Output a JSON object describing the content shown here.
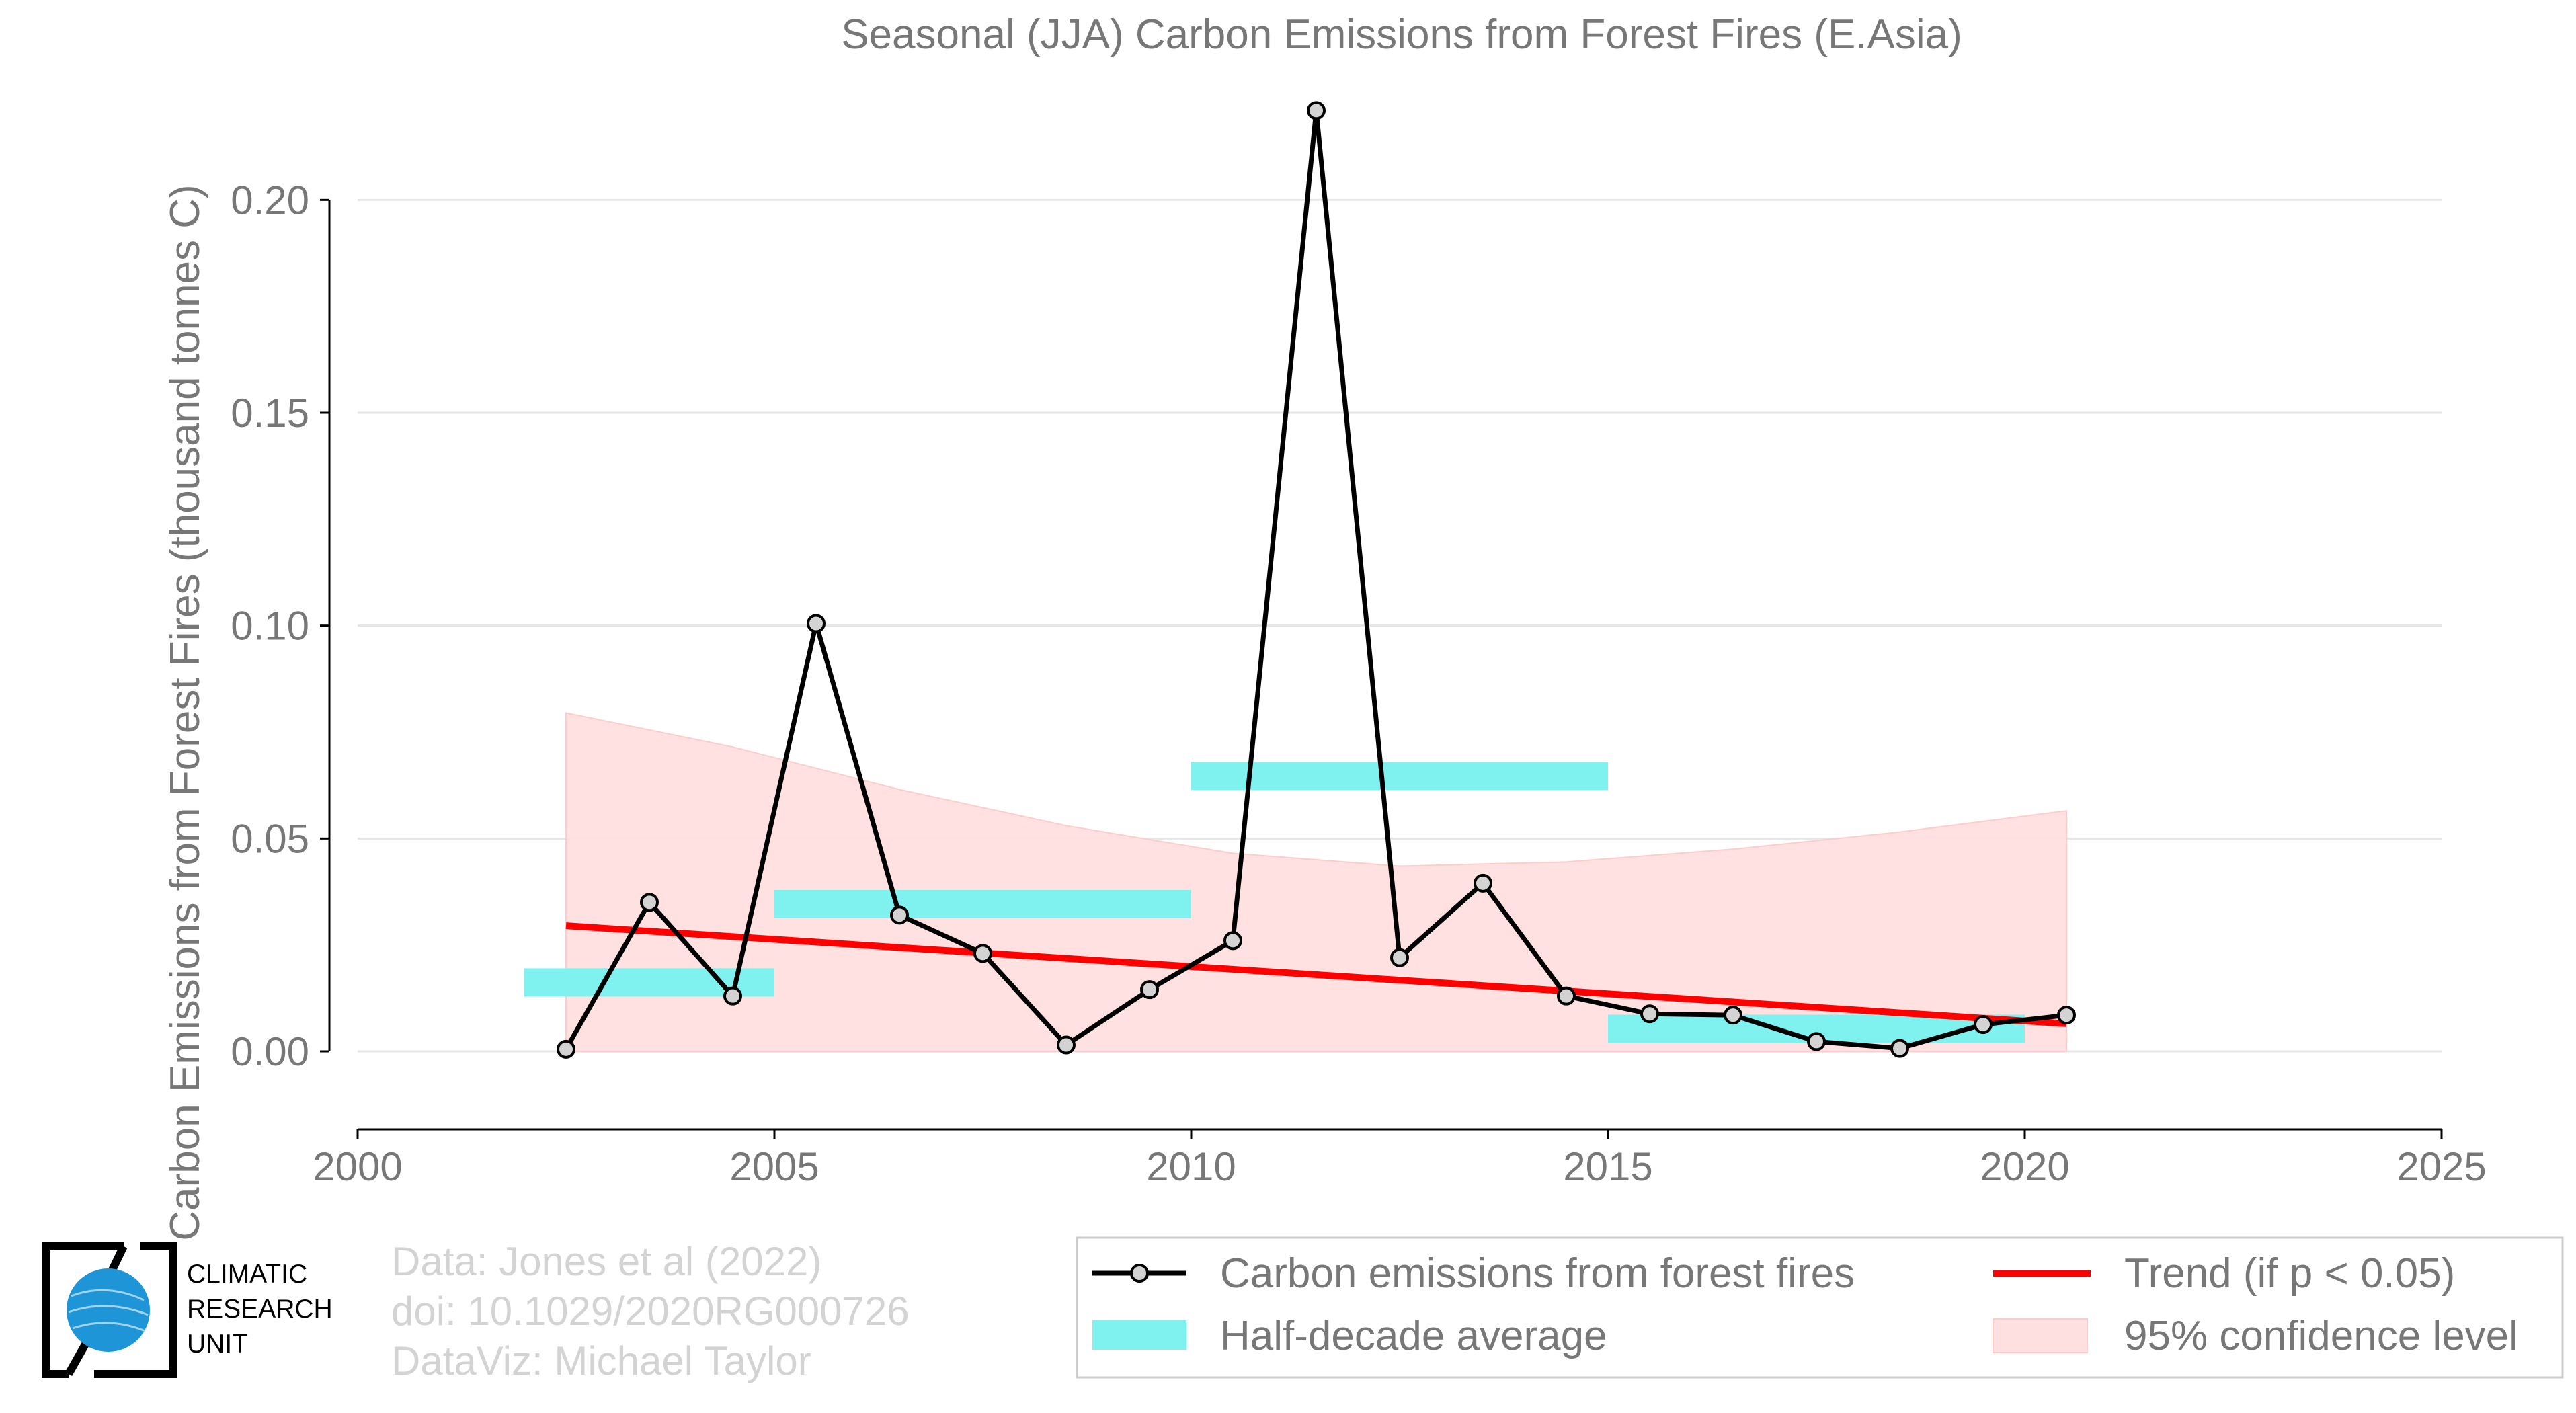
{
  "chart_data": {
    "type": "line",
    "title": "Seasonal (JJA) Carbon Emissions from Forest Fires (E.Asia)",
    "xlabel": "",
    "ylabel": "Carbon Emissions from Forest Fires (thousand tonnes C)",
    "xlim": [
      2000,
      2025
    ],
    "ylim": [
      -0.018,
      0.228
    ],
    "xticks": [
      2000,
      2005,
      2010,
      2015,
      2020,
      2025
    ],
    "xtick_labels": [
      "2000",
      "2005",
      "2010",
      "2015",
      "2020",
      "2025"
    ],
    "yticks": [
      0.0,
      0.05,
      0.1,
      0.15,
      0.2
    ],
    "ytick_labels": [
      "0.00",
      "0.05",
      "0.10",
      "0.15",
      "0.20"
    ],
    "grid": "horizontal",
    "legend_position": "bottom-right",
    "series": [
      {
        "name": "Carbon emissions from forest fires",
        "kind": "line-markers",
        "color": "#000000",
        "marker_fill": "#d3d3d3",
        "x": [
          2002.5,
          2003.5,
          2004.5,
          2005.5,
          2006.5,
          2007.5,
          2008.5,
          2009.5,
          2010.5,
          2011.5,
          2012.5,
          2013.5,
          2014.5,
          2015.5,
          2016.5,
          2017.5,
          2018.5,
          2019.5,
          2020.5
        ],
        "y": [
          0.0005,
          0.035,
          0.013,
          0.1005,
          0.032,
          0.023,
          0.0015,
          0.0145,
          0.026,
          0.221,
          0.022,
          0.0395,
          0.013,
          0.0088,
          0.0085,
          0.0023,
          0.0007,
          0.0063,
          0.0085
        ]
      },
      {
        "name": "Half-decade average",
        "kind": "segments",
        "color": "#7ff2ef",
        "segments": [
          {
            "x0": 2002.0,
            "x1": 2005.0,
            "y": 0.0162
          },
          {
            "x0": 2005.0,
            "x1": 2010.0,
            "y": 0.0346
          },
          {
            "x0": 2010.0,
            "x1": 2015.0,
            "y": 0.0647
          },
          {
            "x0": 2015.0,
            "x1": 2020.0,
            "y": 0.0053
          }
        ]
      },
      {
        "name": "Trend (if p < 0.05)",
        "kind": "trend",
        "color": "#ff0000",
        "x": [
          2002.5,
          2020.5
        ],
        "y": [
          0.0295,
          0.0065
        ]
      },
      {
        "name": "95% confidence level",
        "kind": "band",
        "color": "#ffe0e0",
        "x": [
          2002.5,
          2004.5,
          2006.5,
          2008.5,
          2010.5,
          2012.5,
          2014.5,
          2016.5,
          2018.5,
          2020.5
        ],
        "upper": [
          0.0795,
          0.0715,
          0.0615,
          0.053,
          0.0465,
          0.0435,
          0.0445,
          0.0475,
          0.0515,
          0.0565
        ],
        "lower": [
          0,
          0,
          0,
          0,
          0,
          0,
          0,
          0,
          0,
          0
        ]
      }
    ]
  },
  "credits": {
    "line1": "Data: Jones et al (2022)",
    "line2": "doi: 10.1029/2020RG000726",
    "line3": "DataViz: Michael Taylor"
  },
  "logo": {
    "line1": "CLIMATIC",
    "line2": "RESEARCH",
    "line3": "UNIT"
  },
  "colors": {
    "axis_text": "#777777",
    "grid": "#e6e6e6",
    "credits": "#d3d3d3",
    "logo_blue": "#1d95d6"
  }
}
